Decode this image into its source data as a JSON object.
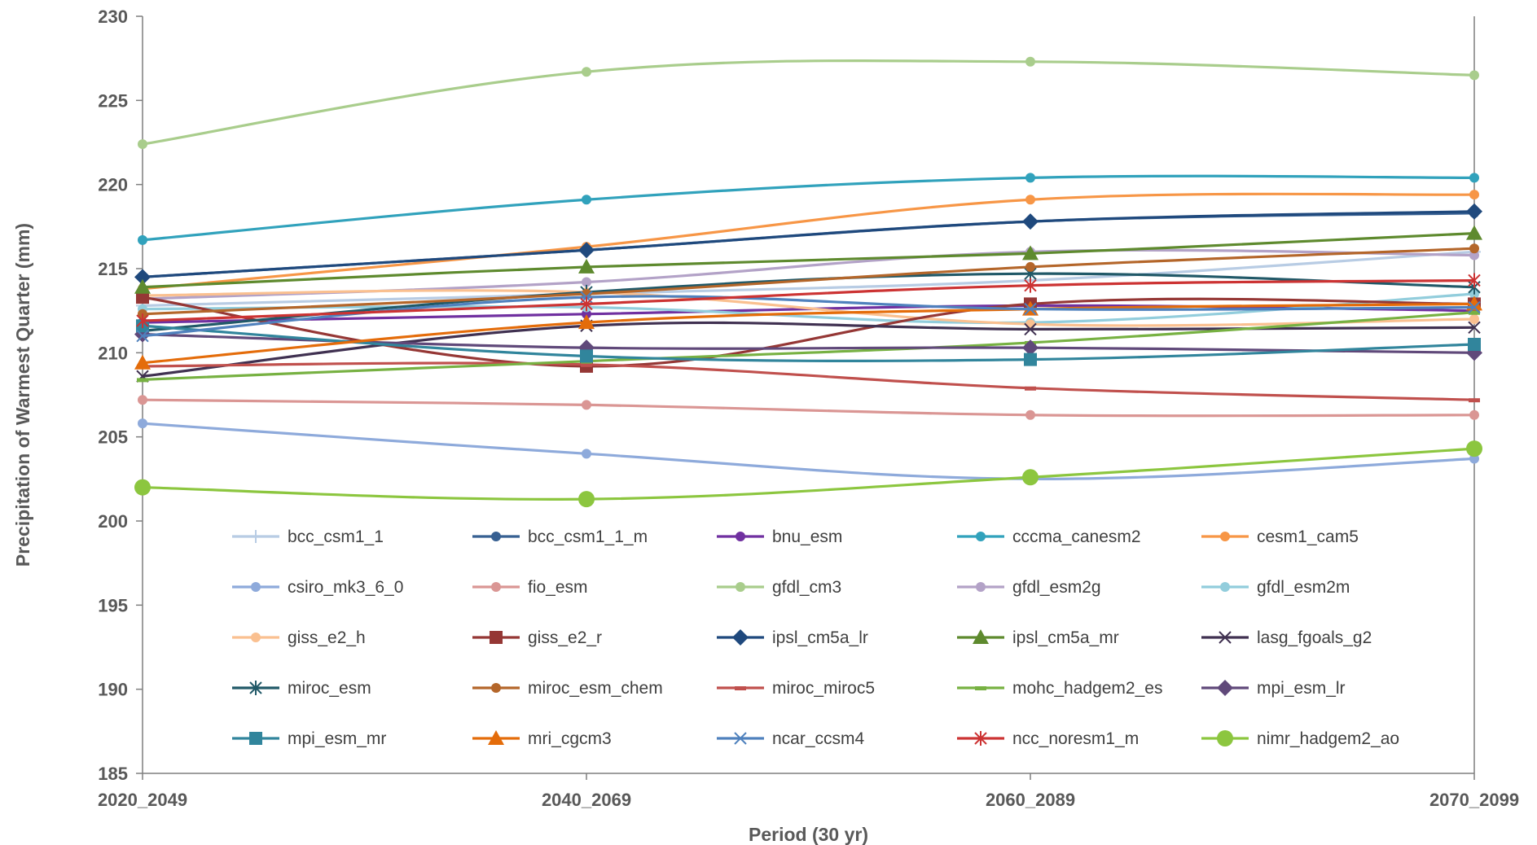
{
  "chart_data": {
    "type": "line",
    "xlabel": "Period (30 yr)",
    "ylabel": "Precipitation of Warmest Quarter (mm)",
    "ylim": [
      185,
      230
    ],
    "yticks": [
      185,
      190,
      195,
      200,
      205,
      210,
      215,
      220,
      225,
      230
    ],
    "categories": [
      "2020_2049",
      "2040_2069",
      "2060_2089",
      "2070_2099"
    ],
    "grid": false,
    "legend_position": "inside-bottom",
    "series": [
      {
        "name": "bcc_csm1_1",
        "color": "#b8cce4",
        "marker": "plus",
        "values": [
          212.8,
          213.5,
          214.3,
          216.0
        ]
      },
      {
        "name": "bcc_csm1_1_m",
        "color": "#376092",
        "marker": "circle",
        "values": [
          214.5,
          216.1,
          217.8,
          218.3
        ]
      },
      {
        "name": "bnu_esm",
        "color": "#7030a0",
        "marker": "circle",
        "values": [
          211.8,
          212.3,
          212.8,
          212.5
        ]
      },
      {
        "name": "cccma_canesm2",
        "color": "#31a2bc",
        "marker": "circle",
        "values": [
          216.7,
          219.1,
          220.4,
          220.4
        ]
      },
      {
        "name": "cesm1_cam5",
        "color": "#f79646",
        "marker": "circle",
        "values": [
          213.8,
          216.3,
          219.1,
          219.4
        ]
      },
      {
        "name": "csiro_mk3_6_0",
        "color": "#8eaadb",
        "marker": "circle",
        "values": [
          205.8,
          204.0,
          202.5,
          203.7
        ]
      },
      {
        "name": "fio_esm",
        "color": "#da9694",
        "marker": "circle",
        "values": [
          207.2,
          206.9,
          206.3,
          206.3
        ]
      },
      {
        "name": "gfdl_cm3",
        "color": "#a9cd8c",
        "marker": "circle",
        "values": [
          222.4,
          226.7,
          227.3,
          226.5
        ]
      },
      {
        "name": "gfdl_esm2g",
        "color": "#b3a2c7",
        "marker": "circle",
        "values": [
          213.2,
          214.2,
          216.0,
          215.8
        ]
      },
      {
        "name": "gfdl_esm2m",
        "color": "#92cddc",
        "marker": "circle",
        "values": [
          212.6,
          212.7,
          211.8,
          213.5
        ]
      },
      {
        "name": "giss_e2_h",
        "color": "#fac090",
        "marker": "circle",
        "values": [
          213.4,
          213.6,
          211.7,
          212.0
        ]
      },
      {
        "name": "giss_e2_r",
        "color": "#953735",
        "marker": "square",
        "values": [
          213.3,
          209.2,
          212.9,
          212.9
        ]
      },
      {
        "name": "ipsl_cm5a_lr",
        "color": "#1f497d",
        "marker": "diamond",
        "values": [
          214.5,
          216.1,
          217.8,
          218.4
        ]
      },
      {
        "name": "ipsl_cm5a_mr",
        "color": "#5e8a2e",
        "marker": "triangle",
        "values": [
          213.9,
          215.1,
          215.9,
          217.1
        ]
      },
      {
        "name": "lasg_fgoals_g2",
        "color": "#403151",
        "marker": "x",
        "values": [
          208.6,
          211.6,
          211.4,
          211.5
        ]
      },
      {
        "name": "miroc_esm",
        "color": "#215968",
        "marker": "star",
        "values": [
          211.3,
          213.6,
          214.7,
          213.9
        ]
      },
      {
        "name": "miroc_esm_chem",
        "color": "#b4662a",
        "marker": "circle",
        "values": [
          212.3,
          213.5,
          215.1,
          216.2
        ]
      },
      {
        "name": "miroc_miroc5",
        "color": "#c0504d",
        "marker": "dash",
        "values": [
          209.2,
          209.3,
          207.9,
          207.2
        ]
      },
      {
        "name": "mohc_hadgem2_es",
        "color": "#77b142",
        "marker": "dash",
        "values": [
          208.4,
          209.5,
          210.6,
          212.4
        ]
      },
      {
        "name": "mpi_esm_lr",
        "color": "#60497a",
        "marker": "diamond",
        "values": [
          211.1,
          210.3,
          210.3,
          210.0
        ]
      },
      {
        "name": "mpi_esm_mr",
        "color": "#31859c",
        "marker": "square",
        "values": [
          211.6,
          209.8,
          209.6,
          210.5
        ]
      },
      {
        "name": "mri_cgcm3",
        "color": "#e46c0a",
        "marker": "triangle",
        "values": [
          209.4,
          211.8,
          212.6,
          212.9
        ]
      },
      {
        "name": "ncar_ccsm4",
        "color": "#4f81bd",
        "marker": "x",
        "values": [
          211.0,
          213.3,
          212.6,
          212.7
        ]
      },
      {
        "name": "ncc_noresm1_m",
        "color": "#cc3333",
        "marker": "star",
        "values": [
          211.9,
          212.9,
          214.0,
          214.3
        ]
      },
      {
        "name": "nimr_hadgem2_ao",
        "color": "#8cc63f",
        "marker": "bigcircle",
        "values": [
          202.0,
          201.3,
          202.6,
          204.3
        ]
      }
    ]
  }
}
